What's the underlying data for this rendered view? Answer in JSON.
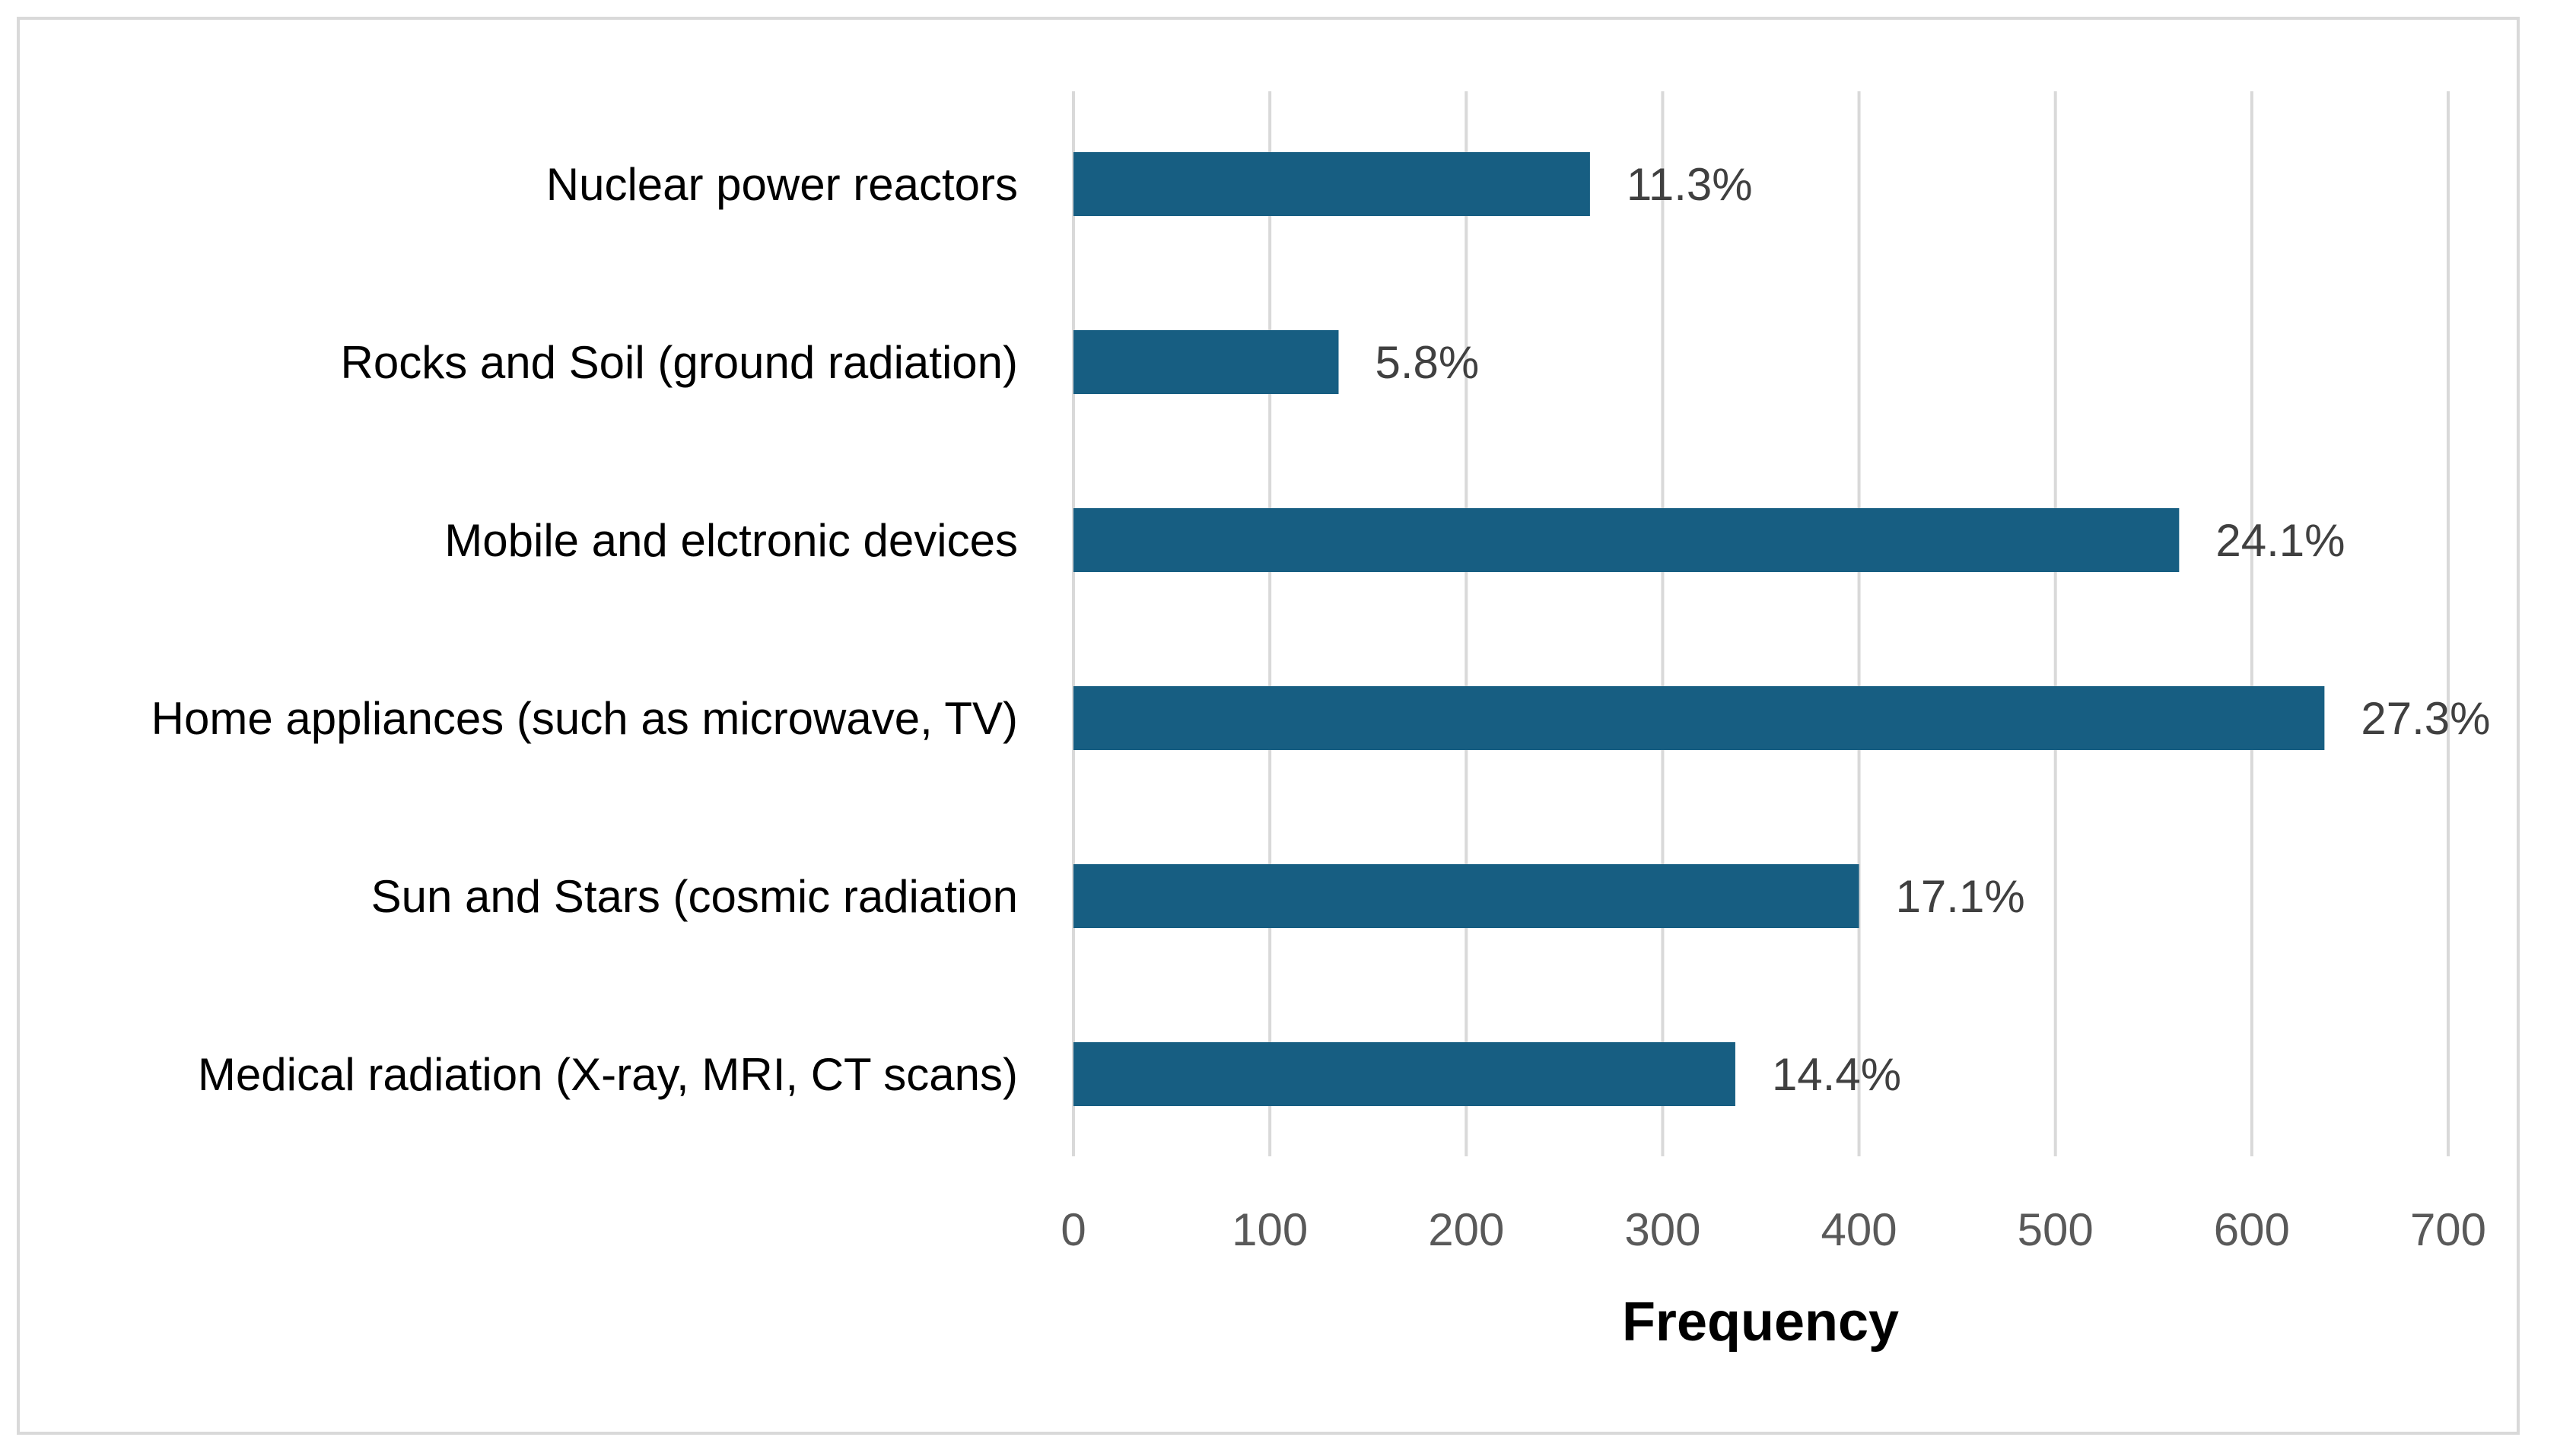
{
  "chart_data": {
    "type": "bar",
    "orientation": "horizontal",
    "title": "",
    "xlabel": "Frequency",
    "ylabel": "",
    "xlim": [
      0,
      700
    ],
    "x_ticks": [
      0,
      100,
      200,
      300,
      400,
      500,
      600,
      700
    ],
    "grid": "vertical",
    "legend": "none",
    "bar_color": "#175E82",
    "categories": [
      "Nuclear power reactors",
      "Rocks and Soil (ground radiation)",
      "Mobile and elctronic devices",
      "Home appliances (such as microwave, TV)",
      "Sun and Stars (cosmic radiation",
      "Medical radiation (X-ray, MRI, CT scans)"
    ],
    "values": [
      263,
      135,
      563,
      637,
      400,
      337
    ],
    "data_labels": [
      "11.3%",
      "5.8%",
      "24.1%",
      "27.3%",
      "17.1%",
      "14.4%"
    ]
  }
}
